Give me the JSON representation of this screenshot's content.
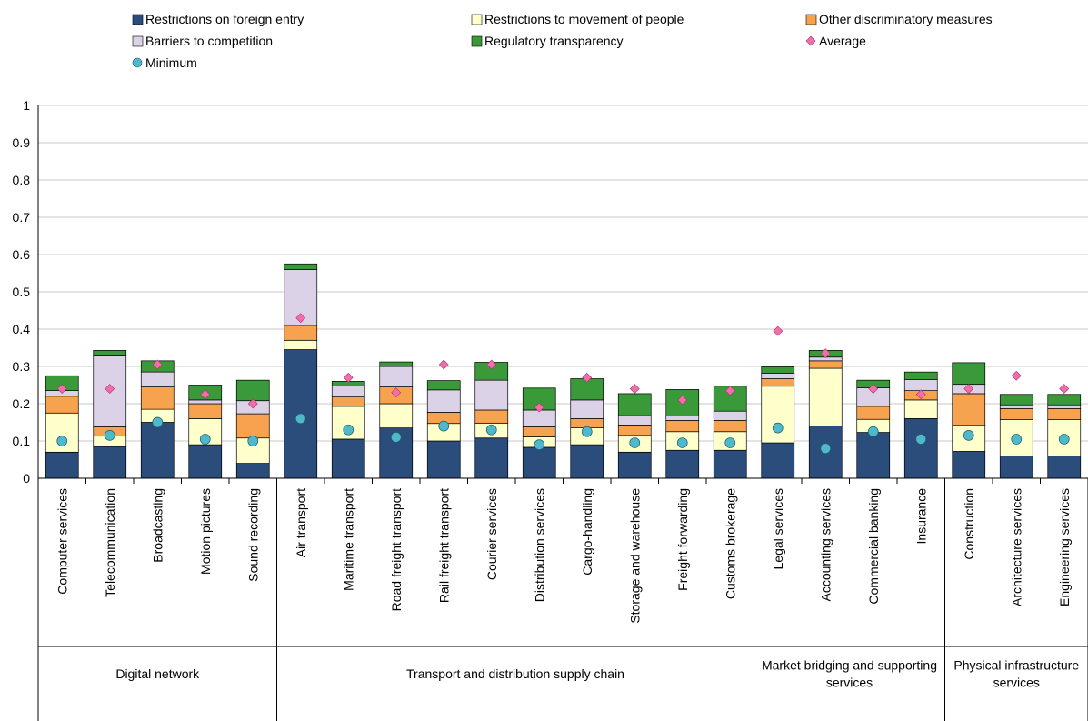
{
  "chart_data": {
    "type": "bar",
    "stacked": true,
    "ylim": [
      0,
      1
    ],
    "y_ticks": [
      "0",
      "0.1",
      "0.2",
      "0.3",
      "0.4",
      "0.5",
      "0.6",
      "0.7",
      "0.8",
      "0.9",
      "1"
    ],
    "grid": true,
    "legend_position": "top",
    "categories": [
      "Computer services",
      "Telecommunication",
      "Broadcasting",
      "Motion pictures",
      "Sound recording",
      "Air transport",
      "Maritime transport",
      "Road freight transport",
      "Rail freight transport",
      "Courier services",
      "Distribution services",
      "Cargo-handling",
      "Storage and warehouse",
      "Freight forwarding",
      "Customs brokerage",
      "Legal services",
      "Accounting services",
      "Commercial banking",
      "Insurance",
      "Construction",
      "Architecture services",
      "Engineering services"
    ],
    "groups": [
      {
        "label": "Digital network",
        "count": 5
      },
      {
        "label": "Transport and distribution supply chain",
        "count": 10
      },
      {
        "label": "Market bridging and supporting services",
        "count": 4
      },
      {
        "label": "Physical infrastructure services",
        "count": 3
      }
    ],
    "legend": {
      "restrictions_entry": "Restrictions on foreign entry",
      "movement_people": "Restrictions to movement of people",
      "other_discrim": "Other discriminatory measures",
      "barriers_competition": "Barriers to competition",
      "reg_transparency": "Regulatory transparency",
      "average": "Average",
      "minimum": "Minimum"
    },
    "colors": {
      "restrictions_entry": "#2a4d7c",
      "movement_people": "#ffffcc",
      "other_discrim": "#f7a24f",
      "barriers_competition": "#dcd2e8",
      "reg_transparency": "#3a9a3a",
      "average": "#f06fa8",
      "minimum": "#4fb8cb"
    },
    "series": [
      {
        "name": "Restrictions on foreign entry",
        "key": "restrictions_entry",
        "values": [
          0.07,
          0.085,
          0.15,
          0.09,
          0.04,
          0.345,
          0.105,
          0.135,
          0.1,
          0.108,
          0.083,
          0.09,
          0.07,
          0.075,
          0.075,
          0.095,
          0.14,
          0.123,
          0.16,
          0.072,
          0.06,
          0.06
        ]
      },
      {
        "name": "Restrictions to movement of people",
        "key": "movement_people",
        "values": [
          0.105,
          0.028,
          0.035,
          0.07,
          0.068,
          0.025,
          0.088,
          0.065,
          0.047,
          0.04,
          0.028,
          0.045,
          0.045,
          0.05,
          0.05,
          0.152,
          0.155,
          0.035,
          0.05,
          0.07,
          0.097,
          0.097
        ]
      },
      {
        "name": "Other discriminatory measures",
        "key": "other_discrim",
        "values": [
          0.045,
          0.025,
          0.06,
          0.04,
          0.065,
          0.04,
          0.025,
          0.045,
          0.03,
          0.035,
          0.027,
          0.025,
          0.028,
          0.03,
          0.03,
          0.02,
          0.02,
          0.035,
          0.025,
          0.085,
          0.03,
          0.03
        ]
      },
      {
        "name": "Barriers to competition",
        "key": "barriers_competition",
        "values": [
          0.015,
          0.19,
          0.04,
          0.01,
          0.035,
          0.15,
          0.03,
          0.055,
          0.06,
          0.08,
          0.045,
          0.05,
          0.025,
          0.012,
          0.025,
          0.015,
          0.01,
          0.05,
          0.03,
          0.025,
          0.01,
          0.01
        ]
      },
      {
        "name": "Regulatory transparency",
        "key": "reg_transparency",
        "values": [
          0.04,
          0.015,
          0.03,
          0.04,
          0.055,
          0.015,
          0.012,
          0.012,
          0.025,
          0.048,
          0.059,
          0.057,
          0.059,
          0.071,
          0.067,
          0.017,
          0.018,
          0.02,
          0.02,
          0.058,
          0.028,
          0.028
        ]
      }
    ],
    "average": [
      0.24,
      0.24,
      0.305,
      0.225,
      0.2,
      0.43,
      0.27,
      0.23,
      0.305,
      0.305,
      0.19,
      0.27,
      0.24,
      0.21,
      0.235,
      0.395,
      0.335,
      0.24,
      0.225,
      0.24,
      0.275,
      0.24
    ],
    "minimum": [
      0.1,
      0.115,
      0.15,
      0.105,
      0.1,
      0.16,
      0.13,
      0.11,
      0.14,
      0.13,
      0.09,
      0.125,
      0.095,
      0.095,
      0.095,
      0.135,
      0.08,
      0.125,
      0.105,
      0.115,
      0.105,
      0.105
    ]
  }
}
